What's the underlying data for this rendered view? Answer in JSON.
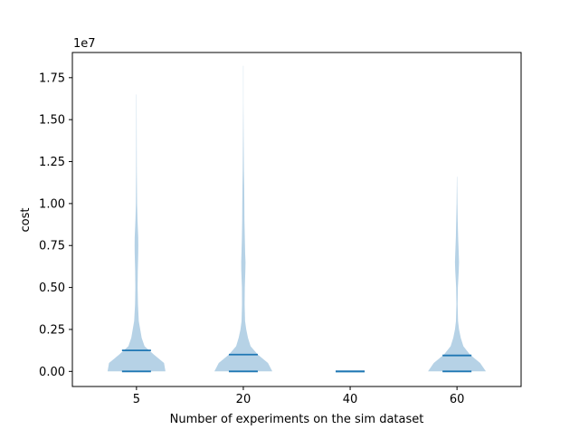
{
  "chart_data": {
    "type": "violin",
    "title": "",
    "xlabel": "Number of experiments on the sim dataset",
    "ylabel": "cost",
    "y_scale_label": "1e7",
    "categories": [
      "5",
      "20",
      "40",
      "60"
    ],
    "ylim": [
      -900000,
      19000000
    ],
    "y_ticks": [
      0,
      2500000,
      5000000,
      7500000,
      10000000,
      12500000,
      15000000,
      17500000
    ],
    "y_tick_labels": [
      "0.00",
      "0.25",
      "0.50",
      "0.75",
      "1.00",
      "1.25",
      "1.50",
      "1.75"
    ],
    "violins": [
      {
        "category": "5",
        "min": 0,
        "mean": 1250000,
        "max": 16500000,
        "density_profile": [
          [
            0,
            1.0
          ],
          [
            500000,
            0.95
          ],
          [
            1000000,
            0.6
          ],
          [
            1500000,
            0.28
          ],
          [
            2000000,
            0.18
          ],
          [
            2500000,
            0.13
          ],
          [
            3000000,
            0.08
          ],
          [
            4000000,
            0.05
          ],
          [
            5000000,
            0.04
          ],
          [
            6000000,
            0.045
          ],
          [
            7000000,
            0.06
          ],
          [
            7500000,
            0.065
          ],
          [
            8000000,
            0.06
          ],
          [
            9000000,
            0.035
          ],
          [
            10000000,
            0.02
          ],
          [
            12000000,
            0.012
          ],
          [
            14000000,
            0.008
          ],
          [
            16500000,
            0.004
          ]
        ]
      },
      {
        "category": "20",
        "min": 0,
        "mean": 1000000,
        "max": 18200000,
        "density_profile": [
          [
            0,
            1.0
          ],
          [
            500000,
            0.85
          ],
          [
            1000000,
            0.5
          ],
          [
            1500000,
            0.25
          ],
          [
            2000000,
            0.16
          ],
          [
            2500000,
            0.1
          ],
          [
            3000000,
            0.06
          ],
          [
            4000000,
            0.045
          ],
          [
            5000000,
            0.05
          ],
          [
            6000000,
            0.07
          ],
          [
            6500000,
            0.075
          ],
          [
            7000000,
            0.065
          ],
          [
            8000000,
            0.05
          ],
          [
            9000000,
            0.04
          ],
          [
            10000000,
            0.035
          ],
          [
            11000000,
            0.03
          ],
          [
            12000000,
            0.02
          ],
          [
            14000000,
            0.01
          ],
          [
            16000000,
            0.006
          ],
          [
            18200000,
            0.004
          ]
        ]
      },
      {
        "category": "40",
        "min": 0,
        "mean": 0,
        "max": 0,
        "density_profile": []
      },
      {
        "category": "60",
        "min": 0,
        "mean": 950000,
        "max": 11600000,
        "density_profile": [
          [
            0,
            1.0
          ],
          [
            500000,
            0.8
          ],
          [
            1000000,
            0.45
          ],
          [
            1500000,
            0.22
          ],
          [
            2000000,
            0.13
          ],
          [
            2500000,
            0.07
          ],
          [
            3000000,
            0.035
          ],
          [
            4000000,
            0.02
          ],
          [
            5000000,
            0.03
          ],
          [
            6000000,
            0.06
          ],
          [
            6500000,
            0.07
          ],
          [
            7000000,
            0.06
          ],
          [
            8000000,
            0.04
          ],
          [
            9000000,
            0.025
          ],
          [
            10000000,
            0.015
          ],
          [
            11000000,
            0.008
          ],
          [
            11600000,
            0.004
          ]
        ]
      }
    ],
    "colors": {
      "fill": "#b6d2e6",
      "line": "#1f77b4",
      "axis": "#000000"
    },
    "grid": false,
    "legend": "none"
  }
}
